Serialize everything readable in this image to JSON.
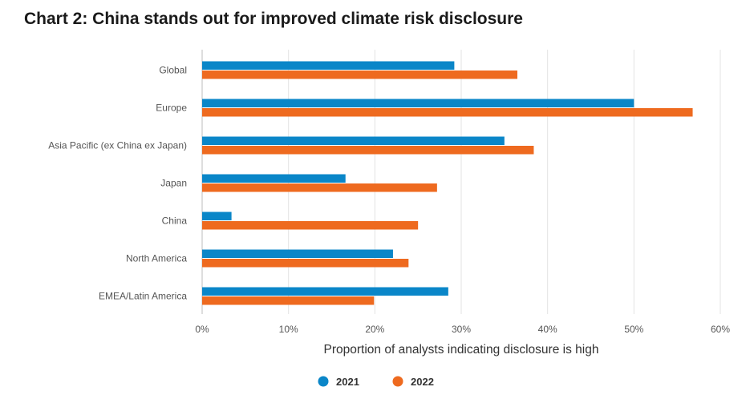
{
  "chart_data": {
    "type": "bar",
    "orientation": "horizontal",
    "title": "Chart 2: China stands out for improved climate risk disclosure",
    "xlabel": "Proportion of analysts indicating disclosure is high",
    "ylabel": "",
    "categories": [
      "Global",
      "Europe",
      "Asia Pacific (ex China ex Japan)",
      "Japan",
      "China",
      "North America",
      "EMEA/Latin America"
    ],
    "series": [
      {
        "name": "2021",
        "color": "#0a86c8",
        "values": [
          29.2,
          50.0,
          35.0,
          16.6,
          3.4,
          22.1,
          28.5
        ]
      },
      {
        "name": "2022",
        "color": "#ee6a1f",
        "values": [
          36.5,
          56.8,
          38.4,
          27.2,
          25.0,
          23.9,
          19.9
        ]
      }
    ],
    "xlim": [
      0,
      60
    ],
    "xticks": [
      0,
      10,
      20,
      30,
      40,
      50,
      60
    ],
    "xtick_labels": [
      "0%",
      "10%",
      "20%",
      "30%",
      "40%",
      "50%",
      "60%"
    ],
    "grid": true,
    "legend_position": "bottom-center"
  }
}
